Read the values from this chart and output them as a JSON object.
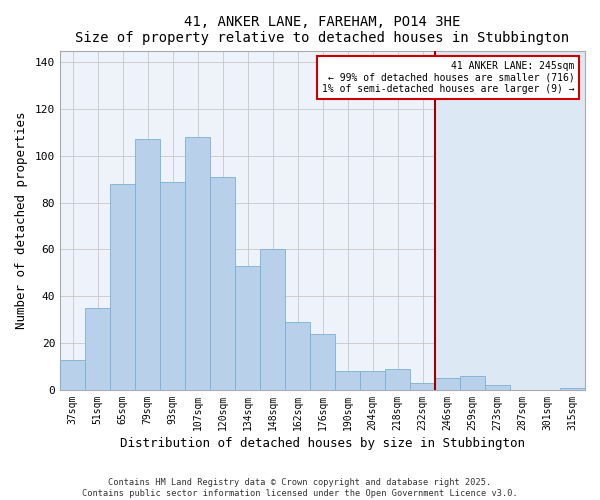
{
  "title": "41, ANKER LANE, FAREHAM, PO14 3HE",
  "subtitle": "Size of property relative to detached houses in Stubbington",
  "xlabel": "Distribution of detached houses by size in Stubbington",
  "ylabel": "Number of detached properties",
  "bar_labels": [
    "37sqm",
    "51sqm",
    "65sqm",
    "79sqm",
    "93sqm",
    "107sqm",
    "120sqm",
    "134sqm",
    "148sqm",
    "162sqm",
    "176sqm",
    "190sqm",
    "204sqm",
    "218sqm",
    "232sqm",
    "246sqm",
    "259sqm",
    "273sqm",
    "287sqm",
    "301sqm",
    "315sqm"
  ],
  "bar_values": [
    13,
    35,
    88,
    107,
    89,
    108,
    91,
    53,
    60,
    29,
    24,
    8,
    8,
    9,
    3,
    5,
    6,
    2,
    0,
    0,
    1
  ],
  "bar_color": "#b8d0ea",
  "bar_edge_color": "#7aafd4",
  "highlight_line_index": 14.5,
  "highlight_color": "#990000",
  "highlight_fill_color": "#dde8f5",
  "annotation_title": "41 ANKER LANE: 245sqm",
  "annotation_line1": "← 99% of detached houses are smaller (716)",
  "annotation_line2": "1% of semi-detached houses are larger (9) →",
  "annotation_box_color": "#ffffff",
  "annotation_border_color": "#cc0000",
  "ylim": [
    0,
    145
  ],
  "yticks": [
    0,
    20,
    40,
    60,
    80,
    100,
    120,
    140
  ],
  "footer1": "Contains HM Land Registry data © Crown copyright and database right 2025.",
  "footer2": "Contains public sector information licensed under the Open Government Licence v3.0.",
  "background_color": "#ffffff",
  "plot_bg_color": "#eef2fa"
}
